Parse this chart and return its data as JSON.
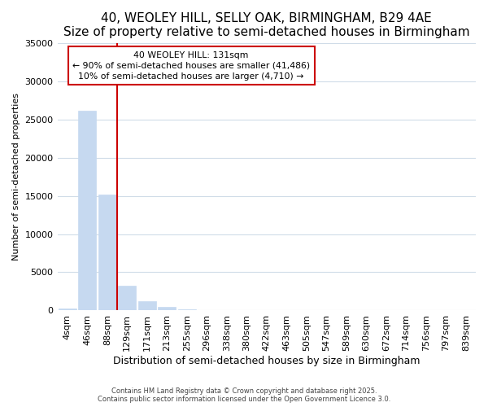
{
  "title": "40, WEOLEY HILL, SELLY OAK, BIRMINGHAM, B29 4AE",
  "subtitle": "Size of property relative to semi-detached houses in Birmingham",
  "xlabel": "Distribution of semi-detached houses by size in Birmingham",
  "ylabel": "Number of semi-detached properties",
  "bar_labels": [
    "4sqm",
    "46sqm",
    "88sqm",
    "129sqm",
    "171sqm",
    "213sqm",
    "255sqm",
    "296sqm",
    "338sqm",
    "380sqm",
    "422sqm",
    "463sqm",
    "505sqm",
    "547sqm",
    "589sqm",
    "630sqm",
    "672sqm",
    "714sqm",
    "756sqm",
    "797sqm",
    "839sqm"
  ],
  "bar_values": [
    300,
    26100,
    15200,
    3200,
    1200,
    430,
    170,
    15,
    3,
    1,
    0,
    0,
    0,
    0,
    0,
    0,
    0,
    0,
    0,
    0,
    0
  ],
  "bar_color": "#c6d9f0",
  "bar_edge_color": "#c6d9f0",
  "vline_color": "#cc0000",
  "vline_x": 2.5,
  "annotation_text": "40 WEOLEY HILL: 131sqm\n← 90% of semi-detached houses are smaller (41,486)\n10% of semi-detached houses are larger (4,710) →",
  "annotation_box_color": "#ffffff",
  "annotation_box_edge_color": "#cc0000",
  "ylim": [
    0,
    35000
  ],
  "yticks": [
    0,
    5000,
    10000,
    15000,
    20000,
    25000,
    30000,
    35000
  ],
  "title_fontsize": 11,
  "subtitle_fontsize": 9.5,
  "tick_fontsize": 8,
  "footer_line1": "Contains HM Land Registry data © Crown copyright and database right 2025.",
  "footer_line2": "Contains public sector information licensed under the Open Government Licence 3.0.",
  "background_color": "#ffffff",
  "plot_bg_color": "#ffffff",
  "grid_color": "#d0dce8"
}
